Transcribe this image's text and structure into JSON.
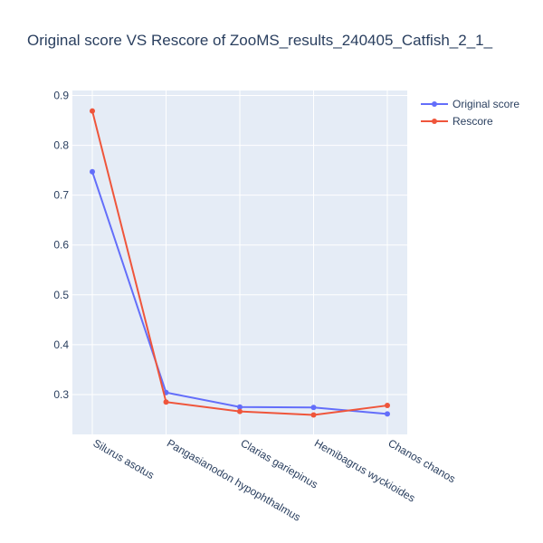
{
  "chart_data": {
    "type": "line",
    "title": "Original score VS Rescore of ZooMS_results_240405_Catfish_2_1_",
    "xlabel": "",
    "ylabel": "",
    "categories": [
      "Silurus asotus",
      "Pangasianodon hypophthalmus",
      "Clarias gariepinus",
      "Hemibagrus wyckioides",
      "Chanos chanos"
    ],
    "series": [
      {
        "name": "Original score",
        "color": "#636efa",
        "values": [
          0.747,
          0.304,
          0.275,
          0.274,
          0.261
        ]
      },
      {
        "name": "Rescore",
        "color": "#ef553b",
        "values": [
          0.869,
          0.285,
          0.266,
          0.259,
          0.278
        ]
      }
    ],
    "ylim": [
      0.22,
      0.91
    ],
    "yticks": [
      "0.3",
      "0.4",
      "0.5",
      "0.6",
      "0.7",
      "0.8",
      "0.9"
    ],
    "grid": true,
    "legend": "top-right"
  }
}
